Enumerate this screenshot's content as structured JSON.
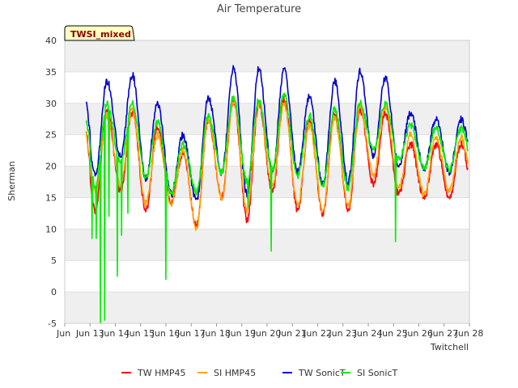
{
  "chart_data": {
    "type": "line",
    "title": "Air Temperature",
    "xlabel": "Twitchell",
    "ylabel": "Sherman",
    "badge": "TWSI_mixed",
    "ylim": [
      -5,
      40
    ],
    "yticks": [
      -5,
      0,
      5,
      10,
      15,
      20,
      25,
      30,
      35,
      40
    ],
    "xlim": [
      "2025-06-12",
      "2025-06-28"
    ],
    "xticks": [
      "Jun 13",
      "Jun 14",
      "Jun 15",
      "Jun 16",
      "Jun 17",
      "Jun 18",
      "Jun 19",
      "Jun 20",
      "Jun 21",
      "Jun 22",
      "Jun 23",
      "Jun 24",
      "Jun 25",
      "Jun 26",
      "Jun 27",
      "Jun 28"
    ],
    "grid": true,
    "legend_position": "bottom",
    "daily": {
      "days": [
        "Jun 13",
        "Jun 14",
        "Jun 15",
        "Jun 16",
        "Jun 17",
        "Jun 18",
        "Jun 19",
        "Jun 20",
        "Jun 21",
        "Jun 22",
        "Jun 23",
        "Jun 24",
        "Jun 25",
        "Jun 26",
        "Jun 27"
      ]
    },
    "series": [
      {
        "name": "TW HMP45",
        "color": "#ff0000",
        "daily_min": [
          13,
          16,
          13,
          14,
          10.5,
          15,
          11.5,
          16,
          13,
          12.5,
          13,
          17,
          15.5,
          15,
          15
        ],
        "daily_max": [
          29,
          28.5,
          26,
          22,
          27.5,
          30.5,
          30,
          30.5,
          27,
          28.5,
          29,
          28.5,
          23.5,
          23.5,
          23.5
        ]
      },
      {
        "name": "SI HMP45",
        "color": "#ffa500",
        "daily_min": [
          16,
          17,
          14,
          14,
          10,
          15,
          13,
          17,
          14,
          13,
          13.5,
          18.5,
          16.5,
          15.5,
          16
        ],
        "daily_max": [
          28,
          29,
          25,
          22.5,
          27.5,
          30.5,
          30,
          30,
          26.5,
          27.5,
          29.5,
          29.5,
          25,
          24.5,
          24.5
        ]
      },
      {
        "name": "TW SonicT",
        "color": "#0000cc",
        "daily_min": [
          18.5,
          21.5,
          18,
          15.5,
          14.5,
          19,
          15.5,
          19,
          19,
          17,
          17.5,
          21.5,
          20,
          19.5,
          19
        ],
        "daily_max": [
          33.5,
          34.5,
          30,
          25,
          31,
          35.5,
          35.5,
          35.5,
          31,
          33.5,
          35,
          34,
          28.5,
          27.5,
          27.5
        ]
      },
      {
        "name": "SI SonicT",
        "color": "#00ee00",
        "daily_min": [
          17,
          20.5,
          18,
          15.5,
          16,
          19,
          17.5,
          19.5,
          18.5,
          17,
          16.5,
          22.5,
          21,
          19.5,
          19.5
        ],
        "daily_max": [
          30,
          30,
          27,
          23.5,
          28,
          31,
          30.5,
          31.5,
          28,
          29,
          30,
          30,
          26.5,
          26,
          26
        ],
        "spikes": [
          {
            "x": "Jun 13 02:00",
            "y": 8.5
          },
          {
            "x": "Jun 13 06:00",
            "y": 8.5
          },
          {
            "x": "Jun 13 10:00",
            "y": -5
          },
          {
            "x": "Jun 13 14:00",
            "y": -4.5
          },
          {
            "x": "Jun 13 18:00",
            "y": 12
          },
          {
            "x": "Jun 14 02:00",
            "y": 2.5
          },
          {
            "x": "Jun 14 06:00",
            "y": 9
          },
          {
            "x": "Jun 14 12:00",
            "y": 12.5
          },
          {
            "x": "Jun 16 00:00",
            "y": 2
          },
          {
            "x": "Jun 19 06:00",
            "y": 13.5
          },
          {
            "x": "Jun 20 04:00",
            "y": 6.5
          },
          {
            "x": "Jun 25 02:00",
            "y": 8
          }
        ]
      }
    ]
  }
}
